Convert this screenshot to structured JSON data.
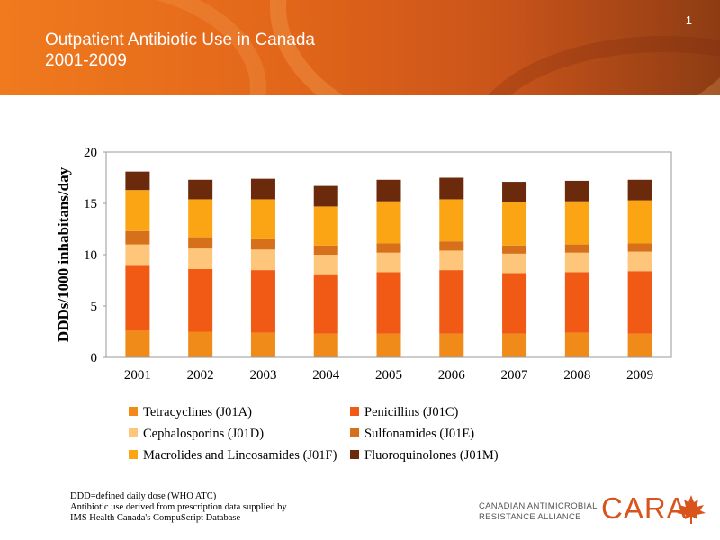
{
  "slide": {
    "title_line1": "Outpatient Antibiotic Use in Canada",
    "title_line2": "2001-2009",
    "number": "1"
  },
  "colors": {
    "header_gradient": [
      "#f07a1e",
      "#e2661a",
      "#c9541a",
      "#8e3c14"
    ],
    "logo": "#d9541c"
  },
  "chart_data": {
    "type": "bar",
    "stacked": true,
    "ylabel": "DDDs/1000 inhabitans/day",
    "ylim": [
      0,
      20
    ],
    "yticks": [
      0,
      5,
      10,
      15,
      20
    ],
    "grid": false,
    "legend_position": "bottom",
    "categories": [
      "2001",
      "2002",
      "2003",
      "2004",
      "2005",
      "2006",
      "2007",
      "2008",
      "2009"
    ],
    "series": [
      {
        "name": "Tetracyclines (J01A)",
        "color": "#f08a18",
        "values": [
          2.6,
          2.5,
          2.4,
          2.3,
          2.3,
          2.3,
          2.3,
          2.4,
          2.3
        ]
      },
      {
        "name": "Penicillins (J01C)",
        "color": "#f05a14",
        "values": [
          6.4,
          6.1,
          6.1,
          5.8,
          6.0,
          6.2,
          5.9,
          5.9,
          6.1
        ]
      },
      {
        "name": "Cephalosporins (J01D)",
        "color": "#fdc67a",
        "values": [
          2.0,
          2.0,
          2.0,
          1.9,
          1.9,
          1.9,
          1.9,
          1.9,
          1.9
        ]
      },
      {
        "name": "Sulfonamides (J01E)",
        "color": "#d6701a",
        "values": [
          1.3,
          1.1,
          1.0,
          0.9,
          0.9,
          0.9,
          0.8,
          0.8,
          0.8
        ]
      },
      {
        "name": "Macrolides and Lincosamides (J01F)",
        "color": "#fba514",
        "values": [
          4.0,
          3.7,
          3.9,
          3.8,
          4.1,
          4.1,
          4.2,
          4.2,
          4.2
        ]
      },
      {
        "name": "Fluoroquinolones (J01M)",
        "color": "#6b2a0c",
        "values": [
          1.8,
          1.9,
          2.0,
          2.0,
          2.1,
          2.1,
          2.0,
          2.0,
          2.0
        ]
      }
    ]
  },
  "footnote": [
    "DDD=defined daily dose (WHO ATC)",
    "Antibiotic use derived from prescription data supplied by",
    "IMS Health Canada's CompuScript Database"
  ],
  "logo": {
    "line1": "CANADIAN ANTIMICROBIAL",
    "line2": "RESISTANCE ALLIANCE",
    "wordmark": "CARA"
  }
}
